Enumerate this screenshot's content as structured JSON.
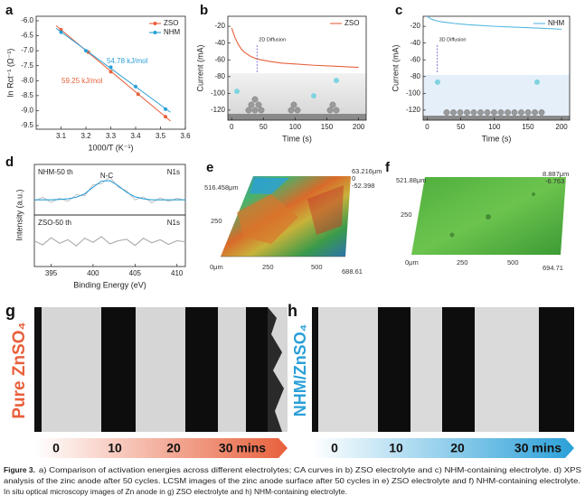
{
  "chart_data": [
    {
      "type": "scatter",
      "panel_label": "a",
      "x_label": "1000/T (K⁻¹)",
      "y_label": "ln Rct⁻¹ (Ω⁻¹)",
      "xlim": [
        3.0,
        3.6
      ],
      "xticks": [
        3.1,
        3.2,
        3.3,
        3.4,
        3.5,
        3.6
      ],
      "ylim": [
        -9.62,
        -5.85
      ],
      "yticks": [
        {
          "value": -6,
          "label": "-6.0"
        },
        -6.5,
        {
          "value": -7,
          "label": "-7.0"
        },
        -7.5,
        {
          "value": -8,
          "label": "-8.0"
        },
        -8.5,
        {
          "value": -9,
          "label": "-9.0"
        },
        -9.5
      ],
      "trendline": true,
      "legend": "upper right",
      "series": [
        {
          "name": "ZSO",
          "color": "#e8603c",
          "x": [
            3.1,
            3.21,
            3.3,
            3.41,
            3.52
          ],
          "values": [
            -6.3,
            -7.05,
            -7.7,
            -8.45,
            -9.2
          ]
        },
        {
          "name": "NHM",
          "color": "#2aa0d8",
          "x": [
            3.1,
            3.2,
            3.3,
            3.4,
            3.52
          ],
          "values": [
            -6.38,
            -7.0,
            -7.55,
            -8.2,
            -8.95
          ]
        }
      ],
      "annotations": [
        {
          "text": "54.78 kJ/mol",
          "color": "#2aa0d8"
        },
        {
          "text": "59.25 kJ/mol",
          "color": "#e8603c"
        }
      ]
    },
    {
      "type": "line",
      "panel_label": "b",
      "x_label": "Time (s)",
      "y_label": "Current (mA)",
      "theme": "2d",
      "xlim": [
        -6,
        212
      ],
      "xticks": [
        0,
        50,
        100,
        150,
        200
      ],
      "ylim": [
        -132,
        -8
      ],
      "yticks": [
        -120,
        -100,
        -80,
        -60,
        -40,
        -20
      ],
      "legend": "upper right",
      "x": [
        0,
        5,
        10,
        15,
        20,
        30,
        40,
        60,
        80,
        100,
        130,
        160,
        200
      ],
      "series": [
        {
          "name": "ZSO",
          "color": "#e8603c",
          "values": [
            -22,
            -33,
            -41,
            -47,
            -51,
            -56,
            -59,
            -62,
            -64,
            -65,
            -66.5,
            -67.5,
            -69
          ]
        }
      ],
      "annotations": [
        {
          "text": "2D Diffusion",
          "x": 40
        }
      ]
    },
    {
      "type": "line",
      "panel_label": "c",
      "x_label": "Time (s)",
      "y_label": "Current (mA)",
      "theme": "3d",
      "xlim": [
        -6,
        212
      ],
      "xticks": [
        0,
        50,
        100,
        150,
        200
      ],
      "ylim": [
        -132,
        -8
      ],
      "yticks": [
        -120,
        -100,
        -80,
        -60,
        -40,
        -20
      ],
      "legend": "upper right",
      "x": [
        0,
        5,
        10,
        15,
        20,
        30,
        40,
        60,
        80,
        100,
        130,
        160,
        200
      ],
      "series": [
        {
          "name": "NHM",
          "color": "#58b8e0",
          "values": [
            -8,
            -11,
            -12.5,
            -13.5,
            -14.5,
            -15.5,
            -16.5,
            -18,
            -19,
            -20,
            -21,
            -22,
            -23.5
          ]
        }
      ],
      "annotations": [
        {
          "text": "3D Diffusion",
          "x": 15
        }
      ]
    },
    {
      "type": "line",
      "panel_label": "d",
      "title": "NHM-50 th",
      "y_label": "Intensity (a.u.)",
      "xlim": [
        393,
        411
      ],
      "ylim": [
        0,
        1
      ],
      "x": [
        393,
        394,
        395,
        396,
        397,
        398,
        399,
        400,
        401,
        402,
        403,
        404,
        405,
        406,
        407,
        408,
        409,
        410,
        411
      ],
      "series": [
        {
          "color": "#aaaaaa",
          "values": [
            0.28,
            0.35,
            0.25,
            0.33,
            0.27,
            0.4,
            0.38,
            0.6,
            0.62,
            0.75,
            0.55,
            0.48,
            0.3,
            0.36,
            0.24,
            0.34,
            0.27,
            0.33,
            0.29
          ]
        },
        {
          "color": "#2aa0d8",
          "values": [
            0.3,
            0.3,
            0.3,
            0.31,
            0.32,
            0.35,
            0.42,
            0.55,
            0.67,
            0.68,
            0.58,
            0.45,
            0.36,
            0.32,
            0.3,
            0.3,
            0.3,
            0.3,
            0.3
          ]
        }
      ],
      "annotations": [
        {
          "text": "N1s"
        },
        {
          "text": "N-C"
        }
      ]
    },
    {
      "type": "line",
      "title": "ZSO-50 th",
      "x_label": "Binding Energy (eV)",
      "xlim": [
        393,
        411
      ],
      "xticks": [
        395,
        400,
        405,
        410
      ],
      "ylim": [
        0,
        1
      ],
      "x": [
        393,
        394,
        395,
        396,
        397,
        398,
        399,
        400,
        401,
        402,
        403,
        404,
        405,
        406,
        407,
        408,
        409,
        410,
        411
      ],
      "series": [
        {
          "color": "#aaaaaa",
          "values": [
            0.5,
            0.42,
            0.56,
            0.45,
            0.52,
            0.4,
            0.55,
            0.47,
            0.58,
            0.44,
            0.5,
            0.53,
            0.41,
            0.55,
            0.46,
            0.52,
            0.43,
            0.5,
            0.48
          ]
        }
      ],
      "annotations": [
        {
          "text": "N1s"
        }
      ]
    }
  ],
  "images": {
    "e": {
      "label": "e",
      "labels": [
        "63.216μm",
        "0",
        "-52.398",
        "516.458μm",
        "250",
        "0μm",
        "250",
        "500",
        "688.61"
      ]
    },
    "f": {
      "label": "f",
      "labels": [
        "521.88μm",
        "8.887μm",
        "-6.763",
        "250",
        "0μm",
        "250",
        "500",
        "694.71"
      ]
    },
    "g": {
      "label": "g",
      "side_label": "Pure ZnSO₄",
      "times": [
        "0",
        "10",
        "20",
        "30 mins"
      ]
    },
    "h": {
      "label": "h",
      "side_label": "NHM/ZnSO₄",
      "times": [
        "0",
        "10",
        "20",
        "30 mins"
      ]
    }
  },
  "caption": {
    "label": "Figure 3.",
    "lines": [
      "a) Comparison of activation energies across different electrolytes; CA curves in b) ZSO electrolyte and c) NHM-containing electrolyte. d) XPS",
      "analysis of the zinc anode after 50 cycles. LCSM images of the zinc anode surface after 50 cycles in e) ZSO electrolyte and f) NHM-containing electrolyte.",
      "In situ optical microscopy images of Zn anode in g) ZSO electrolyte and h) NHM-containing electrolyte."
    ]
  }
}
